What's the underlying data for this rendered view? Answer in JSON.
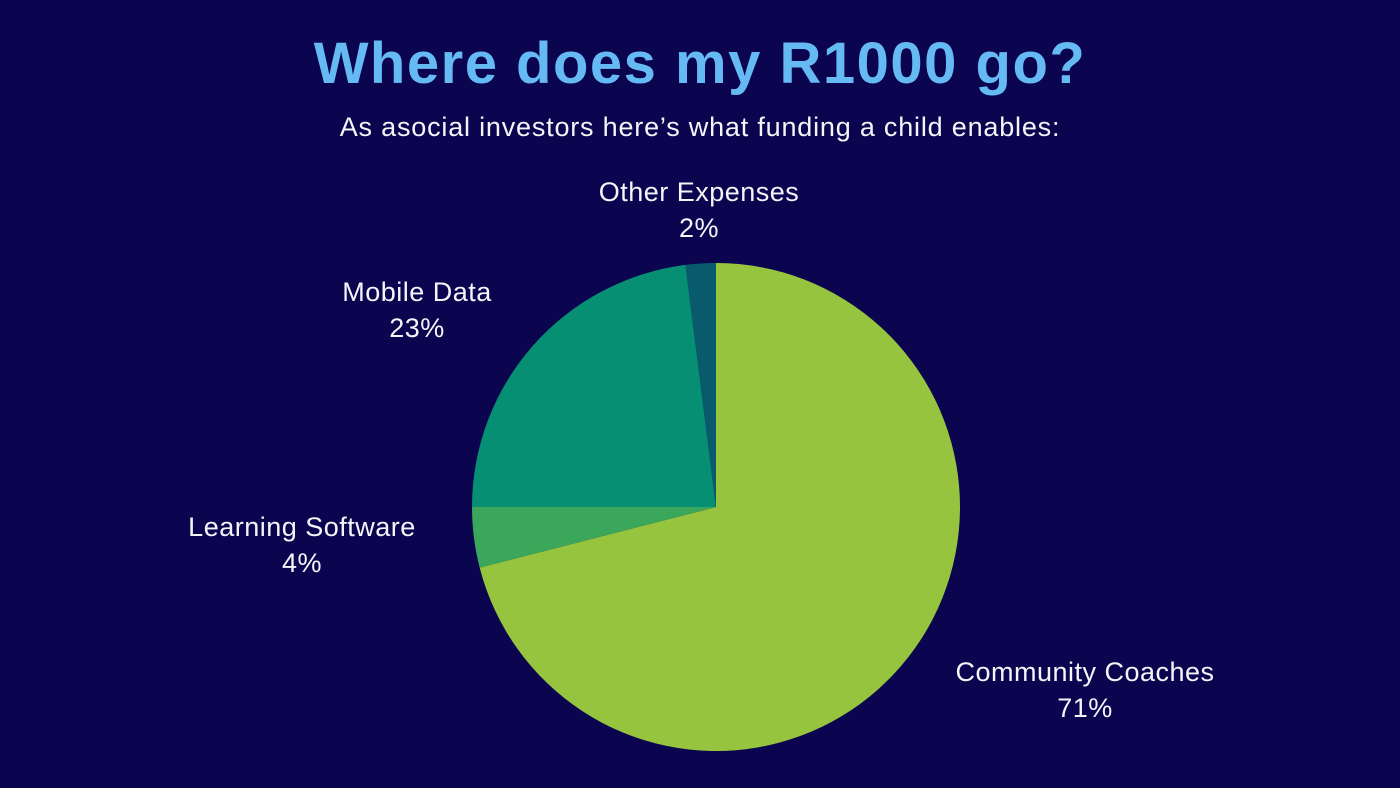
{
  "page": {
    "title": "Where does my R1000 go?",
    "subtitle": "As asocial investors here’s what funding a child enables:"
  },
  "colors": {
    "background": "#0B0550",
    "title_text": "#66BAF3",
    "label_text": "#F5F4F8"
  },
  "chart_data": {
    "type": "pie",
    "title": "Where does my R1000 go?",
    "subtitle": "As asocial investors here’s what funding a child enables:",
    "unit": "%",
    "start_angle_deg": 0,
    "direction": "clockwise",
    "legend": "none (labels placed around pie)",
    "slices": [
      {
        "label": "Community Coaches",
        "value": 71,
        "display": "71%",
        "color": "#97C43E"
      },
      {
        "label": "Learning Software",
        "value": 4,
        "display": "4%",
        "color": "#3BA75A"
      },
      {
        "label": "Mobile Data",
        "value": 23,
        "display": "23%",
        "color": "#078F73"
      },
      {
        "label": "Other Expenses",
        "value": 2,
        "display": "2%",
        "color": "#0A5A6E"
      }
    ]
  }
}
